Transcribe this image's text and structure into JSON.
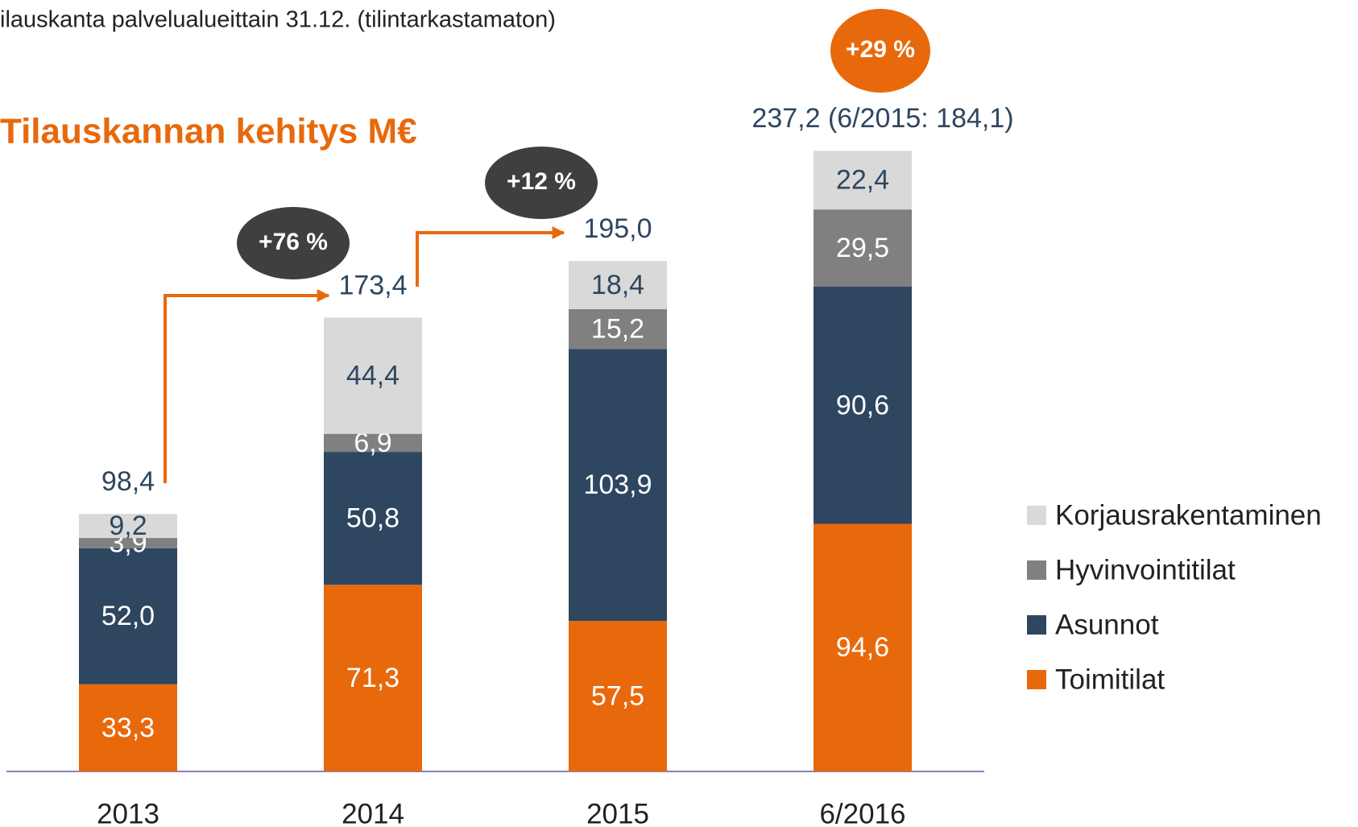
{
  "chart_data": {
    "type": "stacked_bar",
    "subtitle": "ilauskanta palvelualueittain 31.12. (tilintarkastamaton)",
    "title": "Tilauskannan kehitys M€",
    "categories": [
      "2013",
      "2014",
      "2015",
      "6/2016"
    ],
    "series": [
      {
        "name": "Toimitilat",
        "color": "#e8690c",
        "values": [
          33.3,
          71.3,
          57.5,
          94.6
        ],
        "value_labels": [
          "33,3",
          "71,3",
          "57,5",
          "94,6"
        ]
      },
      {
        "name": "Asunnot",
        "color": "#2e4660",
        "values": [
          52.0,
          50.8,
          103.9,
          90.6
        ],
        "value_labels": [
          "52,0",
          "50,8",
          "103,9",
          "90,6"
        ]
      },
      {
        "name": "Hyvinvointitilat",
        "color": "#808080",
        "values": [
          3.9,
          6.9,
          15.2,
          29.5
        ],
        "value_labels": [
          "3,9",
          "6,9",
          "15,2",
          "29,5"
        ]
      },
      {
        "name": "Korjausrakentaminen",
        "color": "#d9d9d9",
        "values": [
          9.2,
          44.4,
          18.4,
          22.4
        ],
        "value_labels": [
          "9,2",
          "44,4",
          "18,4",
          "22,4"
        ]
      }
    ],
    "totals": [
      98.4,
      173.4,
      195.0,
      237.2
    ],
    "total_labels": [
      "98,4",
      "173,4",
      "195,0",
      "237,2 (6/2015: 184,1)"
    ],
    "annotations": [
      "+76 %",
      "+12 %",
      "+29 %"
    ]
  }
}
